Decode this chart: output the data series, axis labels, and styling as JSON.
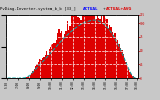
{
  "title": "PvDiag-Inverter-system_b_b [33_]",
  "bg_color": "#c8c8c8",
  "plot_bg": "#ffffff",
  "bar_color": "#dd0000",
  "avg_line_color": "#00aaaa",
  "grid_color": "#ffffff",
  "title_color": "#000000",
  "right_label_color": "#cc0000",
  "num_bars": 96,
  "bar_profile": [
    0.0,
    0.0,
    0.0,
    0.0,
    0.0,
    0.0,
    0.0,
    0.0,
    0.0,
    0.0,
    0.0,
    0.0,
    0.002,
    0.005,
    0.012,
    0.022,
    0.035,
    0.052,
    0.072,
    0.095,
    0.118,
    0.142,
    0.168,
    0.192,
    0.215,
    0.238,
    0.26,
    0.282,
    0.305,
    0.328,
    0.352,
    0.375,
    0.398,
    0.422,
    0.448,
    0.472,
    0.498,
    0.522,
    0.548,
    0.572,
    0.595,
    0.618,
    0.642,
    0.662,
    0.682,
    0.702,
    0.722,
    0.74,
    0.758,
    0.775,
    0.792,
    0.808,
    0.822,
    0.838,
    0.852,
    0.865,
    0.875,
    0.885,
    0.892,
    0.898,
    0.905,
    0.91,
    0.915,
    0.918,
    0.92,
    0.918,
    0.912,
    0.905,
    0.895,
    0.882,
    0.868,
    0.852,
    0.832,
    0.81,
    0.785,
    0.758,
    0.728,
    0.695,
    0.66,
    0.622,
    0.582,
    0.54,
    0.496,
    0.45,
    0.402,
    0.352,
    0.3,
    0.248,
    0.195,
    0.145,
    0.098,
    0.058,
    0.025,
    0.008,
    0.001,
    0.0
  ],
  "spikes": [
    0.0,
    0.0,
    0.0,
    0.0,
    0.0,
    0.0,
    0.0,
    0.0,
    0.0,
    0.0,
    0.0,
    0.0,
    0.0,
    0.0,
    0.0,
    0.0,
    0.0,
    0.0,
    0.0,
    0.02,
    0.04,
    0.06,
    0.08,
    0.1,
    0.12,
    0.15,
    0.18,
    0.2,
    0.18,
    0.16,
    0.18,
    0.2,
    0.22,
    0.24,
    0.26,
    0.28,
    0.25,
    0.22,
    0.25,
    0.28,
    0.25,
    0.22,
    0.2,
    0.22,
    0.25,
    0.22,
    0.2,
    0.22,
    0.25,
    0.22,
    0.2,
    0.22,
    0.25,
    0.22,
    0.2,
    0.22,
    0.25,
    0.22,
    0.2,
    0.22,
    0.25,
    0.22,
    0.2,
    0.22,
    0.2,
    0.18,
    0.2,
    0.22,
    0.2,
    0.18,
    0.16,
    0.18,
    0.2,
    0.18,
    0.16,
    0.14,
    0.16,
    0.18,
    0.16,
    0.14,
    0.12,
    0.1,
    0.08,
    0.06,
    0.05,
    0.04,
    0.03,
    0.02,
    0.01,
    0.0,
    0.0,
    0.0,
    0.0,
    0.0,
    0.0,
    0.0
  ],
  "x_tick_positions": [
    0,
    8,
    16,
    24,
    32,
    40,
    48,
    56,
    64,
    72,
    80,
    88,
    95
  ],
  "x_tick_labels": [
    "5:30",
    "7:00",
    "8:00",
    "9:00",
    "10:00",
    "11:00",
    "12:00",
    "13:00",
    "14:00",
    "15:00",
    "16:00",
    "17:00",
    "18:00"
  ],
  "y_tick_right": [
    0.0,
    0.217,
    0.435,
    0.652,
    0.87,
    1.0
  ],
  "y_tick_right_labels": [
    "0",
    "25",
    "50",
    "75",
    "100",
    "115"
  ],
  "figsize": [
    1.6,
    1.0
  ],
  "dpi": 100
}
